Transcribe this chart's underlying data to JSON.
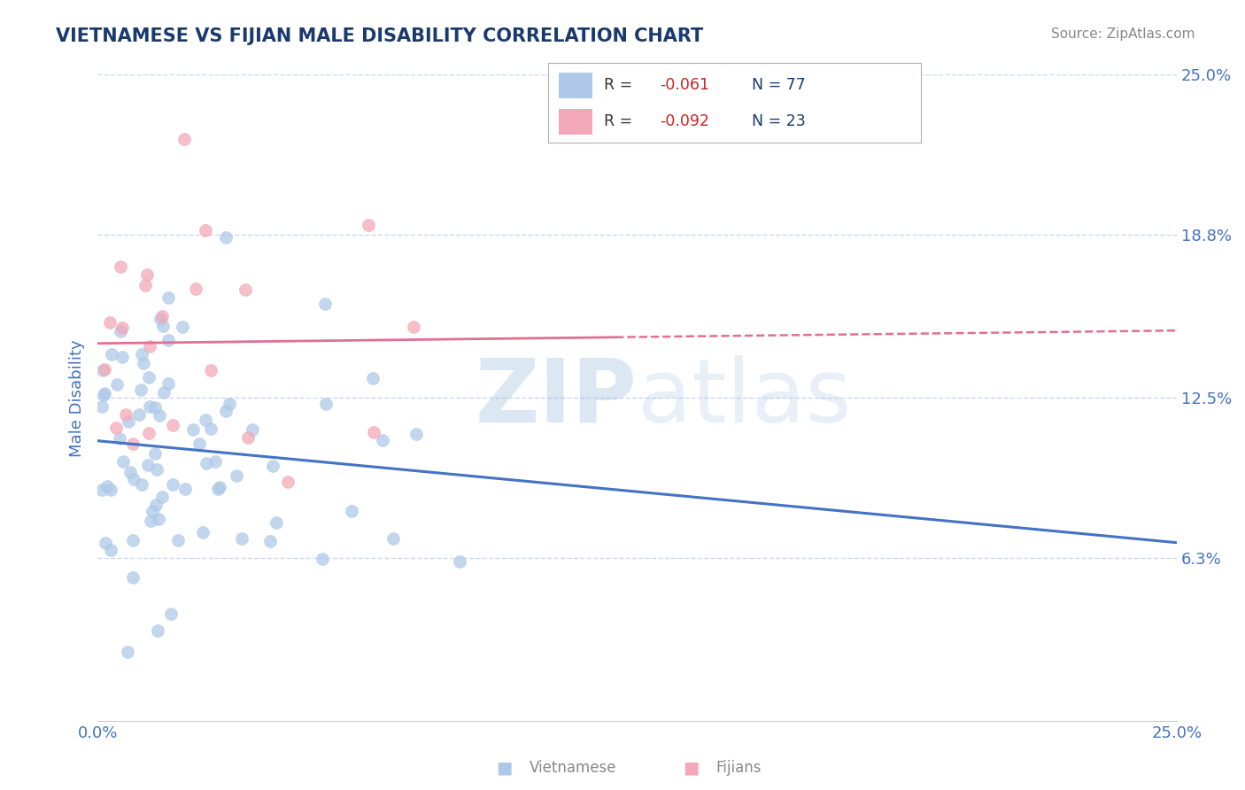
{
  "title": "VIETNAMESE VS FIJIAN MALE DISABILITY CORRELATION CHART",
  "source": "Source: ZipAtlas.com",
  "ylabel": "Male Disability",
  "xlim": [
    0.0,
    0.25
  ],
  "ylim": [
    0.0,
    0.25
  ],
  "ytick_values": [
    0.063,
    0.125,
    0.188,
    0.25
  ],
  "ytick_labels": [
    "6.3%",
    "12.5%",
    "18.8%",
    "25.0%"
  ],
  "xtick_values": [
    0.0,
    0.25
  ],
  "xtick_labels": [
    "0.0%",
    "25.0%"
  ],
  "viet_R": -0.061,
  "viet_N": 77,
  "fiji_R": -0.092,
  "fiji_N": 23,
  "viet_color": "#aec9e8",
  "fiji_color": "#f2a8b8",
  "viet_line_color": "#4472c4",
  "fiji_line_color": "#e07090",
  "title_color": "#1a3a6e",
  "axis_label_color": "#4472c4",
  "tick_color": "#4472c4",
  "background_color": "#ffffff",
  "grid_color": "#c8d8f0",
  "legend_r_color": "#cc2222",
  "legend_n_color": "#1a3a6e",
  "source_color": "#888888",
  "watermark_zip_color": "#8ab0d8",
  "watermark_atlas_color": "#b0c8e0",
  "bottom_label_color": "#888888"
}
